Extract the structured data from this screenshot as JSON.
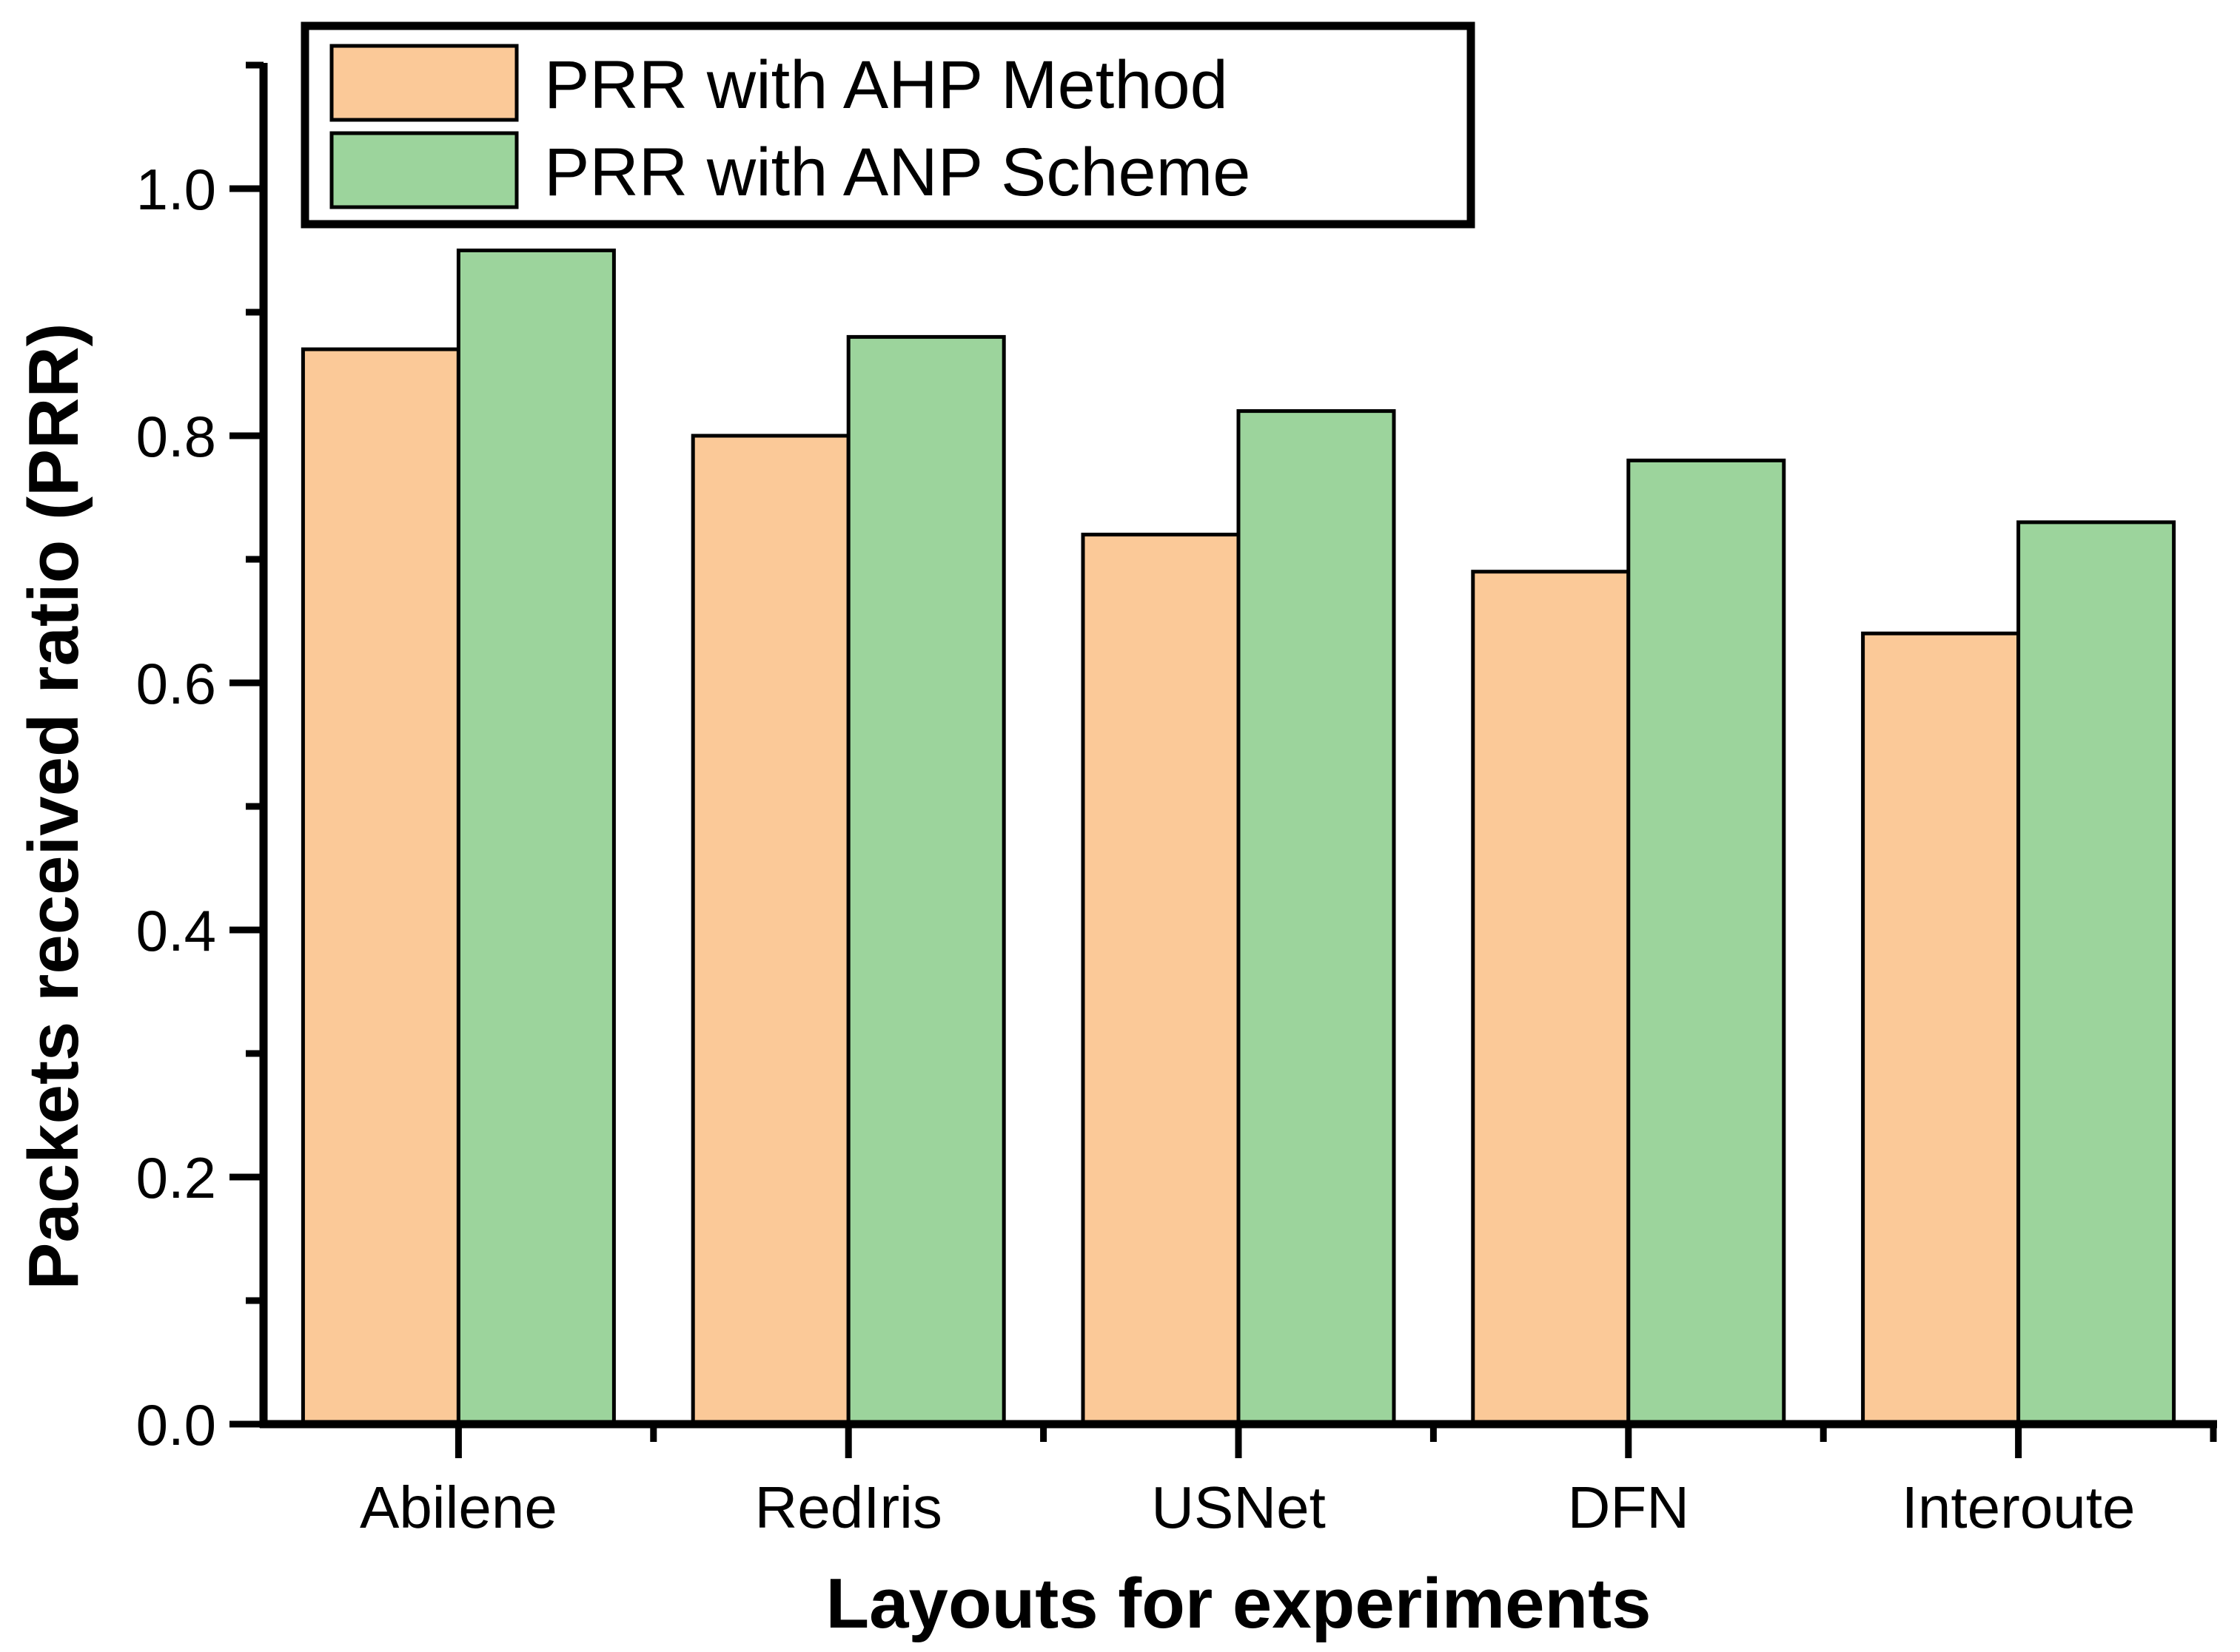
{
  "figure": {
    "background": "#ffffff",
    "text_color": "#000000",
    "axis_color": "#000000"
  },
  "chart_data": {
    "type": "bar",
    "title": "",
    "xlabel": "Layouts for experiments",
    "ylabel": "Packets received ratio (PRR)",
    "categories": [
      "Abilene",
      "RedIris",
      "USNet",
      "DFN",
      "Interoute"
    ],
    "series": [
      {
        "name": "PRR with AHP Method",
        "color": "#FBC998",
        "outline": "#000000",
        "values": [
          0.87,
          0.8,
          0.72,
          0.69,
          0.64
        ]
      },
      {
        "name": "PRR with ANP Scheme",
        "color": "#9CD49C",
        "outline": "#000000",
        "values": [
          0.95,
          0.88,
          0.82,
          0.78,
          0.73
        ]
      }
    ],
    "ylim": [
      0.0,
      1.1
    ],
    "y_major_ticks": [
      {
        "value": 0.0,
        "label": "0.0"
      },
      {
        "value": 0.2,
        "label": "0.2"
      },
      {
        "value": 0.4,
        "label": "0.4"
      },
      {
        "value": 0.6,
        "label": "0.6"
      },
      {
        "value": 0.8,
        "label": "0.8"
      },
      {
        "value": 1.0,
        "label": "1.0"
      }
    ],
    "y_minor_tick_step": 0.1,
    "grid": "off",
    "legend_position": "top-left",
    "legend_border": "#000000",
    "legend_background": "#ffffff"
  }
}
